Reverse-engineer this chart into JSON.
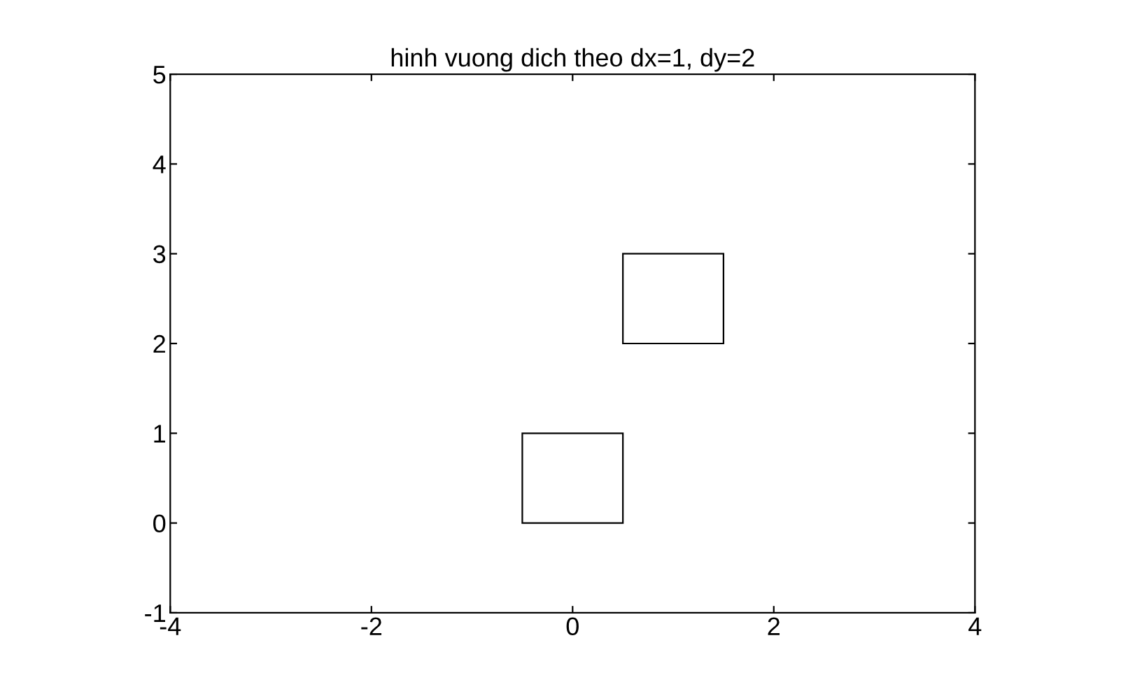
{
  "chart_data": {
    "type": "bar",
    "title": "hinh vuong dich theo dx=1, dy=2",
    "x": [
      0,
      1
    ],
    "base": [
      0,
      2
    ],
    "values": [
      1,
      1
    ],
    "colors": [
      "#000000",
      "#000000"
    ],
    "xlim": [
      -4,
      4
    ],
    "xticks": [
      -4,
      -2,
      0,
      2,
      4
    ],
    "ylim": [
      -1,
      5
    ],
    "yticks": [
      -1,
      0,
      1,
      2,
      3,
      4,
      5
    ],
    "grid": false,
    "legend": false
  }
}
